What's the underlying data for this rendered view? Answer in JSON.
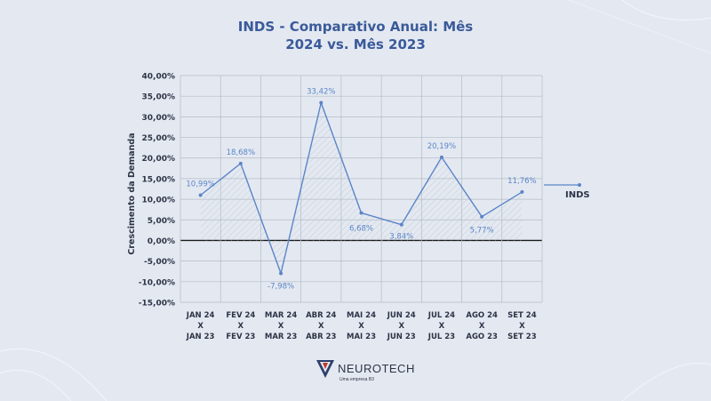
{
  "chart_data": {
    "type": "line",
    "title_line1": "INDS - Comparativo Anual: Mês",
    "title_line2": "2024 vs. Mês 2023",
    "ylabel": "Crescimento da Demanda",
    "xlabel": "",
    "ylim": [
      -15,
      40
    ],
    "y_ticks": [
      40,
      35,
      30,
      25,
      20,
      15,
      10,
      5,
      0,
      -5,
      -10,
      -15
    ],
    "y_tick_labels": [
      "40,00%",
      "35,00%",
      "30,00%",
      "25,00%",
      "20,00%",
      "15,00%",
      "10,00%",
      "5,00%",
      "0,00%",
      "-5,00%",
      "-10,00%",
      "-15,00%"
    ],
    "categories": [
      [
        "JAN 24",
        "X",
        "JAN 23"
      ],
      [
        "FEV 24",
        "X",
        "FEV 23"
      ],
      [
        "MAR 24",
        "X",
        "MAR 23"
      ],
      [
        "ABR 24",
        "X",
        "ABR 23"
      ],
      [
        "MAI 24",
        "X",
        "MAI 23"
      ],
      [
        "JUN 24",
        "X",
        "JUN 23"
      ],
      [
        "JUL 24",
        "X",
        "JUL 23"
      ],
      [
        "AGO 24",
        "X",
        "AGO 23"
      ],
      [
        "SET 24",
        "X",
        "SET 23"
      ]
    ],
    "series": [
      {
        "name": "INDS",
        "values": [
          10.99,
          18.68,
          -7.98,
          33.42,
          6.68,
          3.84,
          20.19,
          5.77,
          11.76
        ],
        "labels": [
          "10,99%",
          "18,68%",
          "-7,98%",
          "33,42%",
          "6,68%",
          "3,84%",
          "20,19%",
          "5,77%",
          "11,76%"
        ]
      }
    ],
    "grid": true,
    "legend": "right",
    "colors": {
      "line": "#5b85c8",
      "title": "#3a5a9a",
      "text": "#2d3447",
      "label": "#5b85c8",
      "zero_line": "#1a1a1a",
      "grid": "#b4bbc6"
    }
  },
  "logo": {
    "name": "NEUROTECH",
    "tagline": "Uma empresa B3"
  }
}
